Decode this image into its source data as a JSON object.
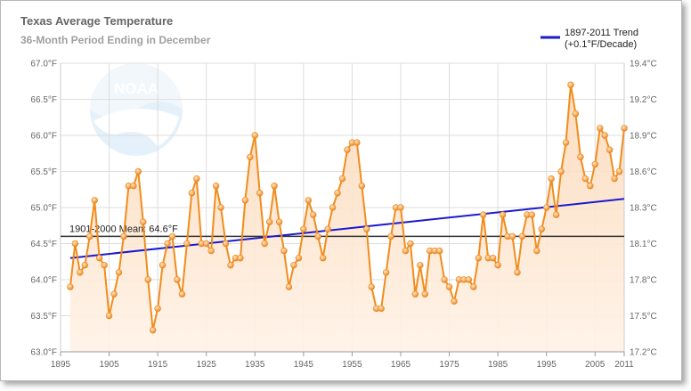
{
  "header": {
    "title": "Texas Average Temperature",
    "subtitle": "36-Month Period Ending in December"
  },
  "logo": {
    "text": "NOAA"
  },
  "legend": {
    "trend_line1": "1897-2011 Trend",
    "trend_line2": "(+0.1°F/Decade)"
  },
  "mean_label": "1901-2000 Mean: 64.6°F",
  "colors": {
    "series": "#f28c1c",
    "area": "#fbd7b4",
    "trend": "#1a1acf",
    "mean": "#333333",
    "grid": "#dddddd"
  },
  "chart_data": {
    "type": "line",
    "title": "Texas Average Temperature",
    "subtitle": "36-Month Period Ending in December",
    "x_ticks": [
      "1895",
      "1905",
      "1915",
      "1925",
      "1935",
      "1945",
      "1955",
      "1965",
      "1975",
      "1985",
      "1995",
      "2005",
      "2011"
    ],
    "y_left_ticks": [
      "63.0°F",
      "63.5°F",
      "64.0°F",
      "64.5°F",
      "65.0°F",
      "65.5°F",
      "66.0°F",
      "66.5°F",
      "67.0°F"
    ],
    "y_right_ticks": [
      "17.2°C",
      "17.5°C",
      "17.8°C",
      "18.1°C",
      "18.3°C",
      "18.6°C",
      "18.9°C",
      "19.2°C",
      "19.4°C"
    ],
    "xlim": [
      1895,
      2011
    ],
    "ylim": [
      63.0,
      67.0
    ],
    "grid": true,
    "legend_position": "top-right",
    "series": [
      {
        "name": "",
        "x": [
          1897,
          1898,
          1899,
          1900,
          1901,
          1902,
          1903,
          1904,
          1905,
          1906,
          1907,
          1908,
          1909,
          1910,
          1911,
          1912,
          1913,
          1914,
          1915,
          1916,
          1917,
          1918,
          1919,
          1920,
          1921,
          1922,
          1923,
          1924,
          1925,
          1926,
          1927,
          1928,
          1929,
          1930,
          1931,
          1932,
          1933,
          1934,
          1935,
          1936,
          1937,
          1938,
          1939,
          1940,
          1941,
          1942,
          1943,
          1944,
          1945,
          1946,
          1947,
          1948,
          1949,
          1950,
          1951,
          1952,
          1953,
          1954,
          1955,
          1956,
          1957,
          1958,
          1959,
          1960,
          1961,
          1962,
          1963,
          1964,
          1965,
          1966,
          1967,
          1968,
          1969,
          1970,
          1971,
          1972,
          1973,
          1974,
          1975,
          1976,
          1977,
          1978,
          1979,
          1980,
          1981,
          1982,
          1983,
          1984,
          1985,
          1986,
          1987,
          1988,
          1989,
          1990,
          1991,
          1992,
          1993,
          1994,
          1995,
          1996,
          1997,
          1998,
          1999,
          2000,
          2001,
          2002,
          2003,
          2004,
          2005,
          2006,
          2007,
          2008,
          2009,
          2010,
          2011
        ],
        "y": [
          63.9,
          64.5,
          64.1,
          64.2,
          64.6,
          65.1,
          64.3,
          64.2,
          63.5,
          63.8,
          64.1,
          64.6,
          65.3,
          65.3,
          65.5,
          64.8,
          64.0,
          63.3,
          63.6,
          64.2,
          64.5,
          64.6,
          64.0,
          63.8,
          64.5,
          65.2,
          65.4,
          64.5,
          64.5,
          64.4,
          65.3,
          65.0,
          64.5,
          64.2,
          64.3,
          64.3,
          65.1,
          65.7,
          66.0,
          65.2,
          64.5,
          64.8,
          65.3,
          64.8,
          64.4,
          63.9,
          64.2,
          64.3,
          64.7,
          65.1,
          64.9,
          64.6,
          64.3,
          64.7,
          65.0,
          65.2,
          65.4,
          65.8,
          65.9,
          65.9,
          65.3,
          64.7,
          63.9,
          63.6,
          63.6,
          64.1,
          64.6,
          65.0,
          65.0,
          64.4,
          64.5,
          63.8,
          64.2,
          63.8,
          64.4,
          64.4,
          64.4,
          64.0,
          63.9,
          63.7,
          64.0,
          64.0,
          64.0,
          63.9,
          64.3,
          64.9,
          64.3,
          64.3,
          64.2,
          64.9,
          64.6,
          64.6,
          64.1,
          64.6,
          64.9,
          64.9,
          64.4,
          64.7,
          65.0,
          65.4,
          64.9,
          65.5,
          65.9,
          66.7,
          66.3,
          65.7,
          65.4,
          65.3,
          65.6,
          66.1,
          66.0,
          65.8,
          65.4,
          65.5,
          66.1
        ]
      }
    ],
    "trend": {
      "name": "1897-2011 Trend (+0.1°F/Decade)",
      "x": [
        1897,
        2011
      ],
      "y": [
        64.3,
        65.12
      ]
    },
    "reference_line": {
      "label": "1901-2000 Mean: 64.6°F",
      "y": 64.6
    }
  }
}
